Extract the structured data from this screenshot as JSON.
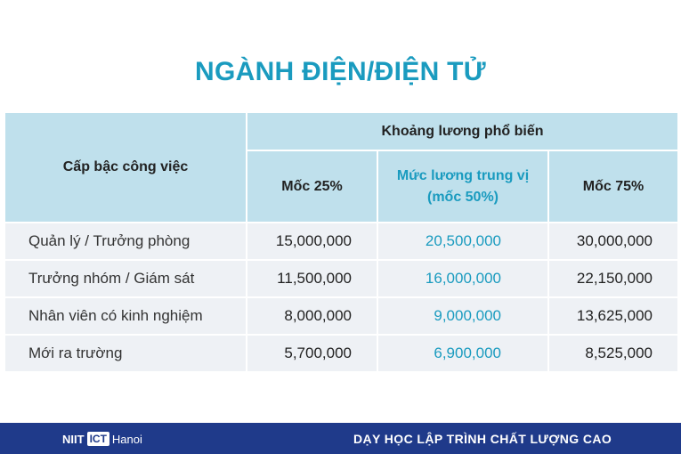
{
  "title": "NGÀNH ĐIỆN/ĐIỆN TỬ",
  "table": {
    "col_job": "Cấp bậc công việc",
    "group_header": "Khoảng lương phổ biến",
    "col_p25": "Mốc 25%",
    "col_median_line1": "Mức lương trung vị",
    "col_median_line2": "(mốc 50%)",
    "col_p75": "Mốc 75%",
    "rows": [
      {
        "level": "Quản lý / Trưởng phòng",
        "p25": "15,000,000",
        "median": "20,500,000",
        "p75": "30,000,000"
      },
      {
        "level": "Trưởng nhóm / Giám sát",
        "p25": "11,500,000",
        "median": "16,000,000",
        "p75": "22,150,000"
      },
      {
        "level": "Nhân viên có kinh nghiệm",
        "p25": "8,000,000",
        "median": "9,000,000",
        "p75": "13,625,000"
      },
      {
        "level": "Mới ra trường",
        "p25": "5,700,000",
        "median": "6,900,000",
        "p75": "8,525,000"
      }
    ]
  },
  "footer": {
    "logo_left": "NIIT",
    "logo_mid": "ICT",
    "logo_right": "Hanoi",
    "slogan": "DẠY HỌC LẬP TRÌNH CHẤT LƯỢNG CAO"
  },
  "colors": {
    "accent": "#1a9bbf",
    "header_bg": "#bfe0ec",
    "row_bg": "#eef1f5",
    "footer_bg": "#1f3a8a"
  }
}
